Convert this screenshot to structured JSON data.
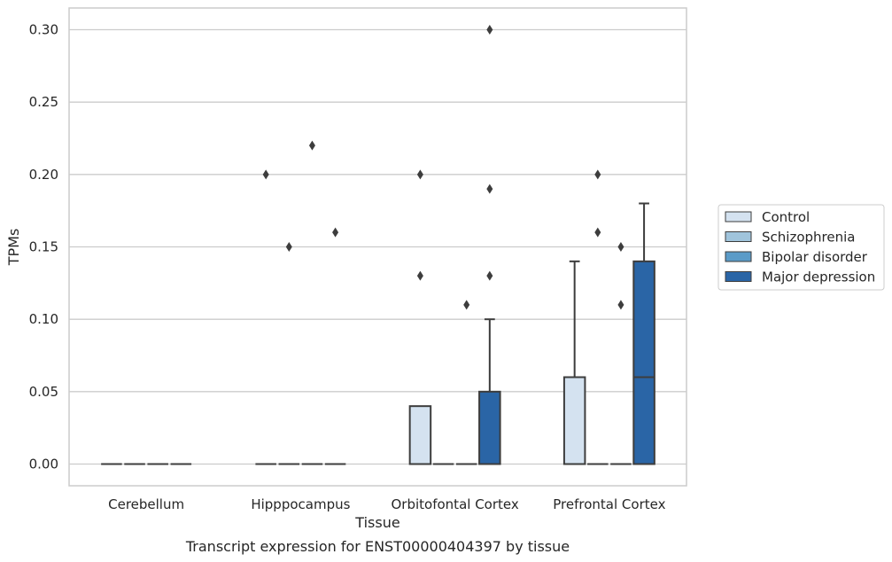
{
  "chart_data": {
    "type": "box",
    "xlabel": "Tissue",
    "ylabel": "TPMs",
    "caption": "Transcript expression for ENST00000404397 by tissue",
    "ylim": [
      -0.015,
      0.315
    ],
    "yticks": [
      "0.00",
      "0.05",
      "0.10",
      "0.15",
      "0.20",
      "0.25",
      "0.30"
    ],
    "grid": "horizontal",
    "legend_position": "right",
    "categories": [
      "Cerebellum",
      "Hipppocampus",
      "Orbitofontal Cortex",
      "Prefrontal Cortex"
    ],
    "series": [
      {
        "name": "Control",
        "color": "#d4e2f0",
        "boxes": [
          {
            "q1": 0,
            "median": 0,
            "q3": 0,
            "whisker_low": 0,
            "whisker_high": 0,
            "outliers": []
          },
          {
            "q1": 0,
            "median": 0,
            "q3": 0,
            "whisker_low": 0,
            "whisker_high": 0,
            "outliers": [
              0.2
            ]
          },
          {
            "q1": 0,
            "median": 0,
            "q3": 0.04,
            "whisker_low": 0,
            "whisker_high": 0.04,
            "outliers": [
              0.13,
              0.2
            ]
          },
          {
            "q1": 0,
            "median": 0,
            "q3": 0.06,
            "whisker_low": 0,
            "whisker_high": 0.14,
            "outliers": []
          }
        ]
      },
      {
        "name": "Schizophrenia",
        "color": "#a0c4dc",
        "boxes": [
          {
            "q1": 0,
            "median": 0,
            "q3": 0,
            "whisker_low": 0,
            "whisker_high": 0,
            "outliers": []
          },
          {
            "q1": 0,
            "median": 0,
            "q3": 0,
            "whisker_low": 0,
            "whisker_high": 0,
            "outliers": [
              0.15
            ]
          },
          {
            "q1": 0,
            "median": 0,
            "q3": 0,
            "whisker_low": 0,
            "whisker_high": 0,
            "outliers": []
          },
          {
            "q1": 0,
            "median": 0,
            "q3": 0,
            "whisker_low": 0,
            "whisker_high": 0,
            "outliers": [
              0.16,
              0.2
            ]
          }
        ]
      },
      {
        "name": "Bipolar disorder",
        "color": "#5b9bc8",
        "boxes": [
          {
            "q1": 0,
            "median": 0,
            "q3": 0,
            "whisker_low": 0,
            "whisker_high": 0,
            "outliers": []
          },
          {
            "q1": 0,
            "median": 0,
            "q3": 0,
            "whisker_low": 0,
            "whisker_high": 0,
            "outliers": [
              0.22
            ]
          },
          {
            "q1": 0,
            "median": 0,
            "q3": 0,
            "whisker_low": 0,
            "whisker_high": 0,
            "outliers": [
              0.11
            ]
          },
          {
            "q1": 0,
            "median": 0,
            "q3": 0,
            "whisker_low": 0,
            "whisker_high": 0,
            "outliers": [
              0.11,
              0.15
            ]
          }
        ]
      },
      {
        "name": "Major depression",
        "color": "#2a65a6",
        "boxes": [
          {
            "q1": 0,
            "median": 0,
            "q3": 0,
            "whisker_low": 0,
            "whisker_high": 0,
            "outliers": []
          },
          {
            "q1": 0,
            "median": 0,
            "q3": 0,
            "whisker_low": 0,
            "whisker_high": 0,
            "outliers": [
              0.16
            ]
          },
          {
            "q1": 0,
            "median": 0,
            "q3": 0.05,
            "whisker_low": 0,
            "whisker_high": 0.1,
            "outliers": [
              0.13,
              0.19,
              0.3
            ]
          },
          {
            "q1": 0,
            "median": 0.06,
            "q3": 0.14,
            "whisker_low": 0,
            "whisker_high": 0.18,
            "outliers": []
          }
        ]
      }
    ]
  }
}
